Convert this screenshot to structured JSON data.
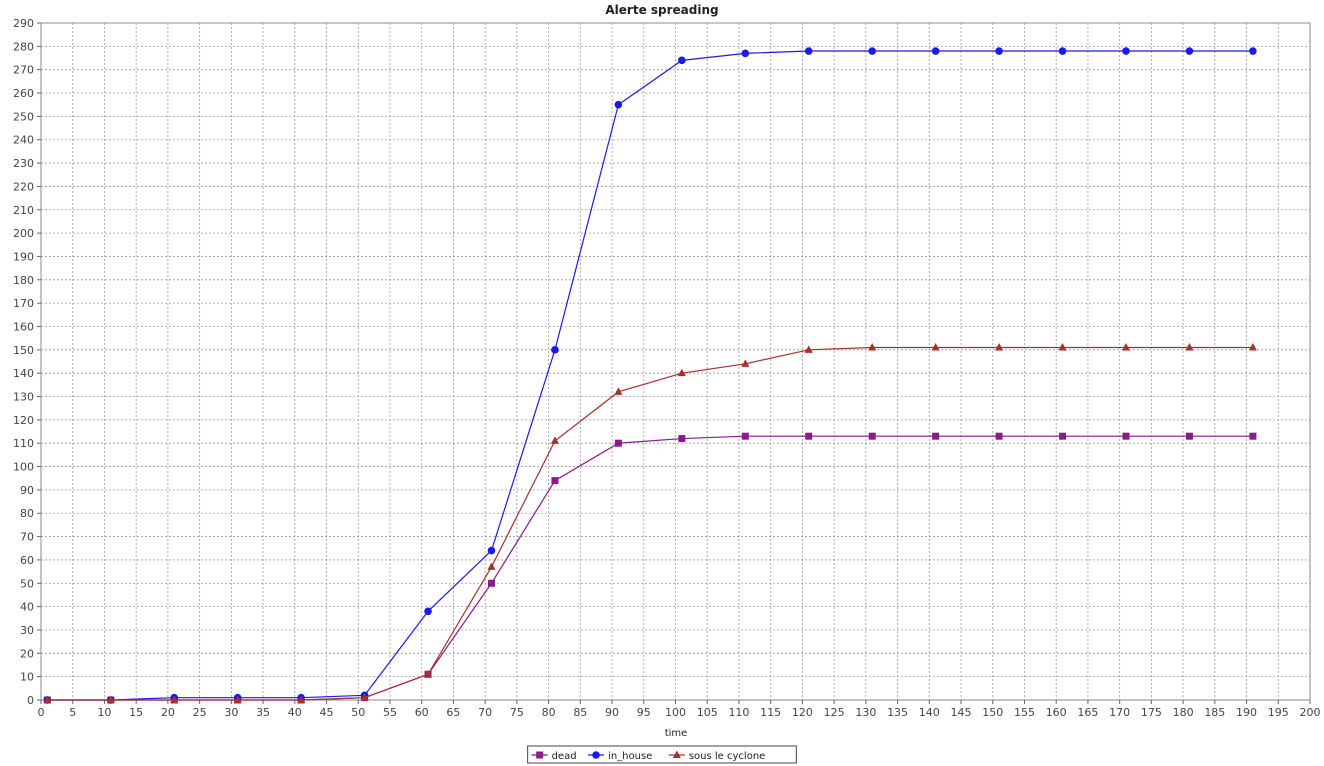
{
  "chart_data": {
    "type": "line",
    "title": "Alerte spreading",
    "xlabel": "time",
    "ylabel": "",
    "xlim": [
      0,
      200
    ],
    "ylim": [
      0,
      290
    ],
    "x_ticks": [
      0,
      5,
      10,
      15,
      20,
      25,
      30,
      35,
      40,
      45,
      50,
      55,
      60,
      65,
      70,
      75,
      80,
      85,
      90,
      95,
      100,
      105,
      110,
      115,
      120,
      125,
      130,
      135,
      140,
      145,
      150,
      155,
      160,
      165,
      170,
      175,
      180,
      185,
      190,
      195,
      200
    ],
    "y_ticks": [
      0,
      10,
      20,
      30,
      40,
      50,
      60,
      70,
      80,
      90,
      100,
      110,
      120,
      130,
      140,
      150,
      160,
      170,
      180,
      190,
      200,
      210,
      220,
      230,
      240,
      250,
      260,
      270,
      280,
      290
    ],
    "grid": true,
    "legend_position": "bottom",
    "series": [
      {
        "name": "dead",
        "color": "#8b1a8b",
        "marker": "square",
        "x": [
          1,
          11,
          21,
          31,
          41,
          51,
          61,
          71,
          81,
          91,
          101,
          111,
          121,
          131,
          141,
          151,
          161,
          171,
          181,
          191
        ],
        "y": [
          0,
          0,
          0,
          0,
          0,
          1,
          11,
          50,
          94,
          110,
          112,
          113,
          113,
          113,
          113,
          113,
          113,
          113,
          113,
          113
        ]
      },
      {
        "name": "in_house",
        "color": "#1a1aee",
        "marker": "circle",
        "x": [
          1,
          11,
          21,
          31,
          41,
          51,
          61,
          71,
          81,
          91,
          101,
          111,
          121,
          131,
          141,
          151,
          161,
          171,
          181,
          191
        ],
        "y": [
          0,
          0,
          1,
          1,
          1,
          2,
          38,
          64,
          150,
          255,
          274,
          277,
          278,
          278,
          278,
          278,
          278,
          278,
          278,
          278
        ]
      },
      {
        "name": "sous le cyclone",
        "color": "#a8302a",
        "marker": "triangle",
        "x": [
          1,
          11,
          21,
          31,
          41,
          51,
          61,
          71,
          81,
          91,
          101,
          111,
          121,
          131,
          141,
          151,
          161,
          171,
          181,
          191
        ],
        "y": [
          0,
          0,
          0,
          0,
          0,
          1,
          11,
          57,
          111,
          132,
          140,
          144,
          150,
          151,
          151,
          151,
          151,
          151,
          151,
          151
        ]
      }
    ]
  }
}
